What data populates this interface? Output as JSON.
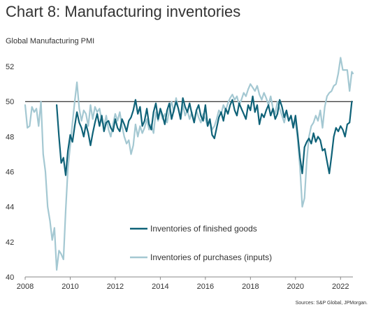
{
  "title": "Chart 8: Manufacturing inventories",
  "source": "Sources: S&P Global, JPMorgan.",
  "chart_data": {
    "type": "line",
    "ylabel": "Global Manufacturing PMI",
    "xlim": [
      2008.0,
      2022.55
    ],
    "ylim": [
      40,
      53
    ],
    "reference_line": 50,
    "x_ticks": [
      2008,
      2010,
      2012,
      2014,
      2016,
      2018,
      2020,
      2022
    ],
    "y_ticks": [
      40,
      42,
      44,
      46,
      48,
      50,
      52
    ],
    "grid": false,
    "legend_position": "bottom-center",
    "series": [
      {
        "name": "Inventories of finished goods",
        "color": "#0f6278",
        "points": [
          [
            2009.4,
            49.8
          ],
          [
            2009.5,
            48.0
          ],
          [
            2009.6,
            46.5
          ],
          [
            2009.7,
            46.8
          ],
          [
            2009.8,
            45.8
          ],
          [
            2009.9,
            47.2
          ],
          [
            2010.0,
            48.1
          ],
          [
            2010.1,
            47.7
          ],
          [
            2010.2,
            48.6
          ],
          [
            2010.3,
            49.4
          ],
          [
            2010.4,
            48.8
          ],
          [
            2010.5,
            48.5
          ],
          [
            2010.6,
            48.0
          ],
          [
            2010.7,
            48.7
          ],
          [
            2010.8,
            48.2
          ],
          [
            2010.9,
            47.5
          ],
          [
            2011.0,
            48.2
          ],
          [
            2011.1,
            48.8
          ],
          [
            2011.2,
            49.3
          ],
          [
            2011.3,
            48.6
          ],
          [
            2011.4,
            49.2
          ],
          [
            2011.5,
            48.3
          ],
          [
            2011.6,
            48.8
          ],
          [
            2011.7,
            48.9
          ],
          [
            2011.8,
            48.5
          ],
          [
            2011.9,
            48.3
          ],
          [
            2012.0,
            49.0
          ],
          [
            2012.1,
            48.5
          ],
          [
            2012.2,
            48.3
          ],
          [
            2012.3,
            49.0
          ],
          [
            2012.4,
            48.7
          ],
          [
            2012.5,
            48.3
          ],
          [
            2012.6,
            48.9
          ],
          [
            2012.7,
            49.1
          ],
          [
            2012.8,
            49.5
          ],
          [
            2012.9,
            50.1
          ],
          [
            2013.0,
            49.3
          ],
          [
            2013.1,
            49.7
          ],
          [
            2013.2,
            48.6
          ],
          [
            2013.3,
            48.9
          ],
          [
            2013.4,
            49.6
          ],
          [
            2013.5,
            48.7
          ],
          [
            2013.6,
            48.4
          ],
          [
            2013.7,
            49.4
          ],
          [
            2013.8,
            49.9
          ],
          [
            2013.9,
            49.0
          ],
          [
            2014.0,
            49.6
          ],
          [
            2014.1,
            49.2
          ],
          [
            2014.2,
            48.7
          ],
          [
            2014.3,
            49.5
          ],
          [
            2014.4,
            49.9
          ],
          [
            2014.5,
            49.0
          ],
          [
            2014.6,
            49.5
          ],
          [
            2014.7,
            50.0
          ],
          [
            2014.8,
            49.6
          ],
          [
            2014.9,
            49.0
          ],
          [
            2015.0,
            50.2
          ],
          [
            2015.1,
            49.7
          ],
          [
            2015.2,
            49.4
          ],
          [
            2015.3,
            49.9
          ],
          [
            2015.4,
            49.3
          ],
          [
            2015.5,
            48.8
          ],
          [
            2015.6,
            49.5
          ],
          [
            2015.7,
            49.8
          ],
          [
            2015.8,
            49.2
          ],
          [
            2015.9,
            48.9
          ],
          [
            2016.0,
            49.8
          ],
          [
            2016.1,
            48.6
          ],
          [
            2016.2,
            49.0
          ],
          [
            2016.3,
            48.1
          ],
          [
            2016.4,
            47.9
          ],
          [
            2016.5,
            48.5
          ],
          [
            2016.6,
            49.1
          ],
          [
            2016.7,
            49.4
          ],
          [
            2016.8,
            48.9
          ],
          [
            2016.9,
            49.6
          ],
          [
            2017.0,
            49.3
          ],
          [
            2017.1,
            49.8
          ],
          [
            2017.2,
            50.1
          ],
          [
            2017.3,
            49.5
          ],
          [
            2017.4,
            49.2
          ],
          [
            2017.5,
            49.9
          ],
          [
            2017.6,
            49.6
          ],
          [
            2017.7,
            49.3
          ],
          [
            2017.8,
            49.0
          ],
          [
            2017.9,
            49.8
          ],
          [
            2018.0,
            49.5
          ],
          [
            2018.1,
            50.3
          ],
          [
            2018.2,
            49.4
          ],
          [
            2018.3,
            49.8
          ],
          [
            2018.4,
            48.7
          ],
          [
            2018.5,
            49.3
          ],
          [
            2018.6,
            49.1
          ],
          [
            2018.7,
            49.5
          ],
          [
            2018.8,
            49.8
          ],
          [
            2018.9,
            49.2
          ],
          [
            2019.0,
            49.6
          ],
          [
            2019.1,
            49.0
          ],
          [
            2019.2,
            49.3
          ],
          [
            2019.3,
            50.1
          ],
          [
            2019.4,
            49.7
          ],
          [
            2019.5,
            49.1
          ],
          [
            2019.6,
            49.5
          ],
          [
            2019.7,
            48.9
          ],
          [
            2019.8,
            49.2
          ],
          [
            2019.9,
            48.5
          ],
          [
            2020.0,
            49.2
          ],
          [
            2020.1,
            48.1
          ],
          [
            2020.2,
            46.8
          ],
          [
            2020.3,
            45.9
          ],
          [
            2020.4,
            47.4
          ],
          [
            2020.5,
            47.7
          ],
          [
            2020.6,
            47.9
          ],
          [
            2020.7,
            47.6
          ],
          [
            2020.8,
            48.2
          ],
          [
            2020.9,
            47.7
          ],
          [
            2021.0,
            48.0
          ],
          [
            2021.1,
            47.8
          ],
          [
            2021.2,
            47.2
          ],
          [
            2021.3,
            47.3
          ],
          [
            2021.4,
            46.6
          ],
          [
            2021.5,
            45.9
          ],
          [
            2021.6,
            46.9
          ],
          [
            2021.7,
            48.0
          ],
          [
            2021.8,
            48.5
          ],
          [
            2021.9,
            48.3
          ],
          [
            2022.0,
            48.6
          ],
          [
            2022.1,
            48.4
          ],
          [
            2022.2,
            48.0
          ],
          [
            2022.3,
            48.7
          ],
          [
            2022.4,
            48.8
          ],
          [
            2022.5,
            50.0
          ]
        ]
      },
      {
        "name": "Inventories of purchases (inputs)",
        "color": "#a4c8d2",
        "points": [
          [
            2008.0,
            49.8
          ],
          [
            2008.1,
            48.5
          ],
          [
            2008.2,
            48.6
          ],
          [
            2008.3,
            49.7
          ],
          [
            2008.4,
            49.4
          ],
          [
            2008.5,
            49.6
          ],
          [
            2008.6,
            48.6
          ],
          [
            2008.7,
            50.0
          ],
          [
            2008.8,
            47.0
          ],
          [
            2008.9,
            46.0
          ],
          [
            2009.0,
            44.0
          ],
          [
            2009.1,
            43.2
          ],
          [
            2009.2,
            42.1
          ],
          [
            2009.3,
            42.8
          ],
          [
            2009.4,
            40.4
          ],
          [
            2009.5,
            41.5
          ],
          [
            2009.6,
            41.3
          ],
          [
            2009.7,
            41.0
          ],
          [
            2009.8,
            43.8
          ],
          [
            2009.9,
            46.2
          ],
          [
            2010.0,
            47.5
          ],
          [
            2010.1,
            48.8
          ],
          [
            2010.2,
            50.0
          ],
          [
            2010.3,
            51.1
          ],
          [
            2010.4,
            49.6
          ],
          [
            2010.5,
            48.9
          ],
          [
            2010.6,
            49.5
          ],
          [
            2010.7,
            49.3
          ],
          [
            2010.8,
            48.6
          ],
          [
            2010.9,
            49.8
          ],
          [
            2011.0,
            49.0
          ],
          [
            2011.1,
            49.7
          ],
          [
            2011.2,
            49.4
          ],
          [
            2011.3,
            49.6
          ],
          [
            2011.4,
            48.9
          ],
          [
            2011.5,
            48.6
          ],
          [
            2011.6,
            49.2
          ],
          [
            2011.7,
            48.4
          ],
          [
            2011.8,
            48.0
          ],
          [
            2011.9,
            48.7
          ],
          [
            2012.0,
            49.3
          ],
          [
            2012.1,
            48.9
          ],
          [
            2012.2,
            49.4
          ],
          [
            2012.3,
            48.6
          ],
          [
            2012.4,
            48.0
          ],
          [
            2012.5,
            47.6
          ],
          [
            2012.6,
            47.8
          ],
          [
            2012.7,
            47.0
          ],
          [
            2012.8,
            47.5
          ],
          [
            2012.9,
            48.7
          ],
          [
            2013.0,
            48.0
          ],
          [
            2013.1,
            48.6
          ],
          [
            2013.2,
            48.2
          ],
          [
            2013.3,
            48.5
          ],
          [
            2013.4,
            49.0
          ],
          [
            2013.5,
            48.4
          ],
          [
            2013.6,
            48.7
          ],
          [
            2013.7,
            48.2
          ],
          [
            2013.8,
            49.4
          ],
          [
            2013.9,
            48.9
          ],
          [
            2014.0,
            49.5
          ],
          [
            2014.1,
            49.0
          ],
          [
            2014.2,
            49.3
          ],
          [
            2014.3,
            48.8
          ],
          [
            2014.4,
            49.5
          ],
          [
            2014.5,
            50.0
          ],
          [
            2014.6,
            49.4
          ],
          [
            2014.7,
            50.2
          ],
          [
            2014.8,
            49.6
          ],
          [
            2014.9,
            49.0
          ],
          [
            2015.0,
            49.8
          ],
          [
            2015.1,
            49.2
          ],
          [
            2015.2,
            49.5
          ],
          [
            2015.3,
            49.0
          ],
          [
            2015.4,
            49.4
          ],
          [
            2015.5,
            48.9
          ],
          [
            2015.6,
            49.5
          ],
          [
            2015.7,
            49.1
          ],
          [
            2015.8,
            48.8
          ],
          [
            2015.9,
            49.3
          ],
          [
            2016.0,
            49.0
          ],
          [
            2016.1,
            48.6
          ],
          [
            2016.2,
            48.9
          ],
          [
            2016.3,
            48.4
          ],
          [
            2016.4,
            48.6
          ],
          [
            2016.5,
            49.0
          ],
          [
            2016.6,
            49.5
          ],
          [
            2016.7,
            49.3
          ],
          [
            2016.8,
            49.8
          ],
          [
            2016.9,
            49.5
          ],
          [
            2017.0,
            49.9
          ],
          [
            2017.1,
            50.2
          ],
          [
            2017.2,
            50.4
          ],
          [
            2017.3,
            50.1
          ],
          [
            2017.4,
            50.3
          ],
          [
            2017.5,
            49.8
          ],
          [
            2017.6,
            50.1
          ],
          [
            2017.7,
            50.5
          ],
          [
            2017.8,
            50.3
          ],
          [
            2017.9,
            50.7
          ],
          [
            2018.0,
            51.0
          ],
          [
            2018.1,
            50.8
          ],
          [
            2018.2,
            50.6
          ],
          [
            2018.3,
            50.9
          ],
          [
            2018.4,
            50.4
          ],
          [
            2018.5,
            50.1
          ],
          [
            2018.6,
            50.5
          ],
          [
            2018.7,
            50.2
          ],
          [
            2018.8,
            49.8
          ],
          [
            2018.9,
            50.3
          ],
          [
            2019.0,
            49.6
          ],
          [
            2019.1,
            49.3
          ],
          [
            2019.2,
            50.0
          ],
          [
            2019.3,
            49.6
          ],
          [
            2019.4,
            49.2
          ],
          [
            2019.5,
            48.8
          ],
          [
            2019.6,
            49.4
          ],
          [
            2019.7,
            48.9
          ],
          [
            2019.8,
            49.2
          ],
          [
            2019.9,
            48.6
          ],
          [
            2020.0,
            48.9
          ],
          [
            2020.1,
            47.8
          ],
          [
            2020.2,
            46.2
          ],
          [
            2020.3,
            44.0
          ],
          [
            2020.4,
            44.5
          ],
          [
            2020.5,
            46.6
          ],
          [
            2020.6,
            48.0
          ],
          [
            2020.7,
            48.6
          ],
          [
            2020.8,
            48.8
          ],
          [
            2020.9,
            49.2
          ],
          [
            2021.0,
            48.9
          ],
          [
            2021.1,
            49.5
          ],
          [
            2021.2,
            48.5
          ],
          [
            2021.3,
            49.7
          ],
          [
            2021.4,
            50.3
          ],
          [
            2021.5,
            50.5
          ],
          [
            2021.6,
            50.6
          ],
          [
            2021.7,
            50.9
          ],
          [
            2021.8,
            51.0
          ],
          [
            2021.9,
            51.6
          ],
          [
            2022.0,
            52.5
          ],
          [
            2022.1,
            51.8
          ],
          [
            2022.2,
            51.8
          ],
          [
            2022.3,
            51.8
          ],
          [
            2022.4,
            50.6
          ],
          [
            2022.5,
            51.7
          ],
          [
            2022.55,
            51.6
          ]
        ]
      }
    ]
  }
}
